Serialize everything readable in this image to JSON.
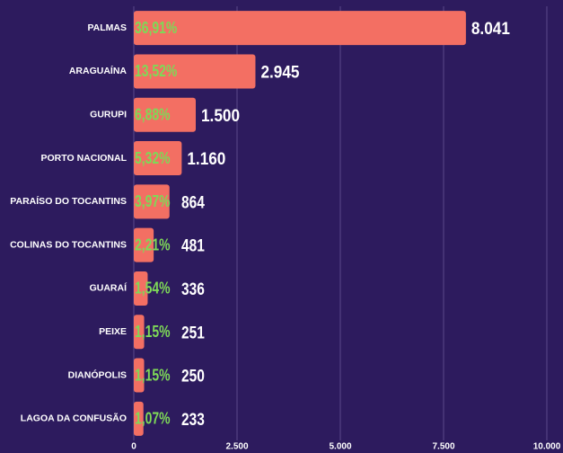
{
  "chart_data": {
    "type": "bar",
    "orientation": "horizontal",
    "categories": [
      "PALMAS",
      "ARAGUAÍNA",
      "GURUPI",
      "PORTO NACIONAL",
      "PARAÍSO DO TOCANTINS",
      "COLINAS DO TOCANTINS",
      "GUARAÍ",
      "PEIXE",
      "DIANÓPOLIS",
      "LAGOA DA CONFUSÃO"
    ],
    "values": [
      8041,
      2945,
      1500,
      1160,
      864,
      481,
      336,
      251,
      250,
      233
    ],
    "value_labels": [
      "8.041",
      "2.945",
      "1.500",
      "1.160",
      "864",
      "481",
      "336",
      "251",
      "250",
      "233"
    ],
    "share_labels": [
      "36,91%",
      "13,52%",
      "6,88%",
      "5,32%",
      "3,97%",
      "2,21%",
      "1,54%",
      "1,15%",
      "1,15%",
      "1,07%"
    ],
    "color": "#f36f63",
    "xlim": [
      0,
      10000
    ],
    "xticks": [
      0,
      {
        "value": 2500,
        "label": "2.500"
      },
      {
        "value": 5000,
        "label": "5.000"
      },
      {
        "value": 7500,
        "label": "7.500"
      },
      {
        "value": 10000,
        "label": "10.000"
      }
    ],
    "grid": true
  }
}
